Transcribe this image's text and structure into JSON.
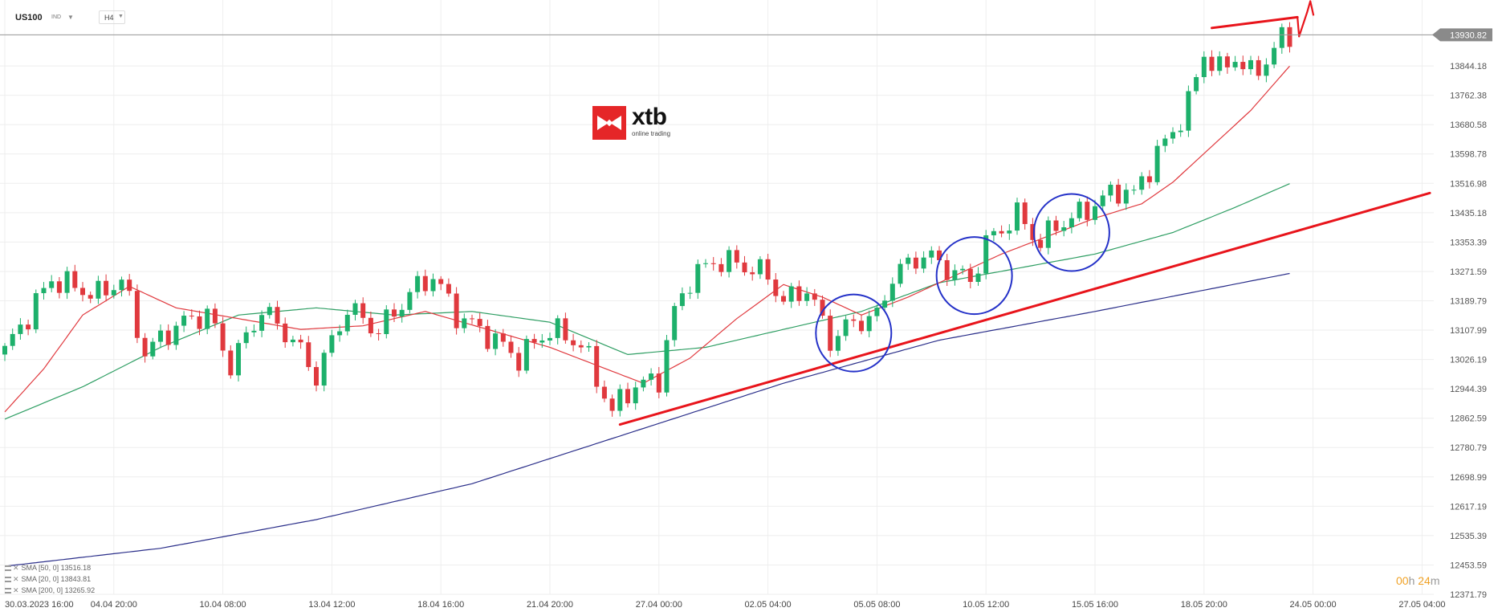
{
  "header": {
    "symbol": "US100",
    "symbol_type": "IND",
    "timeframe": "H4"
  },
  "logo": {
    "name": "xtb",
    "tagline": "online trading"
  },
  "countdown": {
    "hours": "00",
    "h_unit": "h",
    "minutes": "24",
    "m_unit": "m"
  },
  "indicators": [
    {
      "label": "SMA [50, 0] 13516.18",
      "color": "#2e9e63"
    },
    {
      "label": "SMA [20, 0] 13843.81",
      "color": "#e0393e"
    },
    {
      "label": "SMA [200, 0] 13265.92",
      "color": "#2b2f8a"
    }
  ],
  "colors": {
    "up": "#1db06b",
    "down": "#e0393e",
    "sma50": "#2e9e63",
    "sma20": "#e0393e",
    "sma200": "#2b2f8a",
    "drawing": "#e8141b",
    "circles": "#2431c8",
    "grid": "#eeeeee"
  },
  "chart_data": {
    "type": "candlestick",
    "instrument": "US100",
    "timeframe": "H4",
    "ylim": [
      12371.79,
      14010
    ],
    "y_ticks": [
      "13930.82",
      "13844.18",
      "13762.38",
      "13680.58",
      "13598.78",
      "13516.98",
      "13435.18",
      "13353.39",
      "13271.59",
      "13189.79",
      "13107.99",
      "13026.19",
      "12944.39",
      "12862.59",
      "12780.79",
      "12698.99",
      "12617.19",
      "12535.39",
      "12453.59",
      "12371.79"
    ],
    "current_price": "13930.82",
    "x_labels": [
      "30.03.2023 16:00",
      "04.04 20:00",
      "10.04 08:00",
      "13.04 12:00",
      "18.04 16:00",
      "21.04 20:00",
      "27.04 00:00",
      "02.05 04:00",
      "05.05 08:00",
      "10.05 12:00",
      "15.05 16:00",
      "18.05 20:00",
      "24.05 00:00",
      "27.05 04:00"
    ],
    "x_label_bars": [
      0,
      14,
      28,
      42,
      56,
      70,
      84,
      98,
      112,
      126,
      140,
      154,
      168,
      182
    ],
    "bars_visible": 183,
    "close_anchors": [
      [
        0,
        13050
      ],
      [
        6,
        13250
      ],
      [
        12,
        13205
      ],
      [
        15,
        13250
      ],
      [
        18,
        13045
      ],
      [
        22,
        13120
      ],
      [
        26,
        13155
      ],
      [
        29,
        13010
      ],
      [
        33,
        13165
      ],
      [
        37,
        13080
      ],
      [
        40,
        12980
      ],
      [
        44,
        13170
      ],
      [
        48,
        13105
      ],
      [
        52,
        13210
      ],
      [
        55,
        13260
      ],
      [
        58,
        13150
      ],
      [
        62,
        13095
      ],
      [
        66,
        13030
      ],
      [
        70,
        13110
      ],
      [
        74,
        13070
      ],
      [
        78,
        12880
      ],
      [
        80,
        12940
      ],
      [
        84,
        12975
      ],
      [
        86,
        13160
      ],
      [
        88,
        13250
      ],
      [
        91,
        13300
      ],
      [
        94,
        13295
      ],
      [
        98,
        13260
      ],
      [
        100,
        13185
      ],
      [
        103,
        13225
      ],
      [
        106,
        13080
      ],
      [
        109,
        13130
      ],
      [
        112,
        13145
      ],
      [
        114,
        13260
      ],
      [
        118,
        13320
      ],
      [
        121,
        13280
      ],
      [
        124,
        13245
      ],
      [
        126,
        13350
      ],
      [
        130,
        13430
      ],
      [
        133,
        13350
      ],
      [
        135,
        13400
      ],
      [
        138,
        13430
      ],
      [
        140,
        13460
      ],
      [
        143,
        13500
      ],
      [
        145,
        13485
      ],
      [
        148,
        13600
      ],
      [
        150,
        13660
      ],
      [
        152,
        13740
      ],
      [
        154,
        13880
      ],
      [
        156,
        13830
      ],
      [
        158,
        13870
      ],
      [
        160,
        13820
      ],
      [
        162,
        13860
      ],
      [
        164,
        13920
      ],
      [
        165,
        13931
      ]
    ],
    "series": [
      {
        "name": "SMA [50, 0]",
        "values": [
          [
            0,
            12860
          ],
          [
            10,
            12950
          ],
          [
            20,
            13060
          ],
          [
            30,
            13150
          ],
          [
            40,
            13170
          ],
          [
            50,
            13150
          ],
          [
            60,
            13160
          ],
          [
            70,
            13130
          ],
          [
            80,
            13040
          ],
          [
            90,
            13060
          ],
          [
            100,
            13110
          ],
          [
            110,
            13160
          ],
          [
            120,
            13240
          ],
          [
            130,
            13280
          ],
          [
            140,
            13320
          ],
          [
            150,
            13380
          ],
          [
            158,
            13450
          ],
          [
            165,
            13516.18
          ]
        ]
      },
      {
        "name": "SMA [20, 0]",
        "values": [
          [
            0,
            12880
          ],
          [
            5,
            13000
          ],
          [
            10,
            13150
          ],
          [
            16,
            13230
          ],
          [
            22,
            13170
          ],
          [
            30,
            13140
          ],
          [
            38,
            13110
          ],
          [
            46,
            13120
          ],
          [
            54,
            13160
          ],
          [
            62,
            13110
          ],
          [
            70,
            13060
          ],
          [
            76,
            13010
          ],
          [
            82,
            12960
          ],
          [
            88,
            13030
          ],
          [
            94,
            13140
          ],
          [
            100,
            13235
          ],
          [
            105,
            13200
          ],
          [
            110,
            13150
          ],
          [
            116,
            13200
          ],
          [
            122,
            13260
          ],
          [
            128,
            13320
          ],
          [
            134,
            13370
          ],
          [
            140,
            13420
          ],
          [
            146,
            13460
          ],
          [
            150,
            13520
          ],
          [
            155,
            13620
          ],
          [
            160,
            13720
          ],
          [
            165,
            13843.81
          ]
        ]
      },
      {
        "name": "SMA [200, 0]",
        "values": [
          [
            0,
            12450
          ],
          [
            20,
            12500
          ],
          [
            40,
            12580
          ],
          [
            60,
            12680
          ],
          [
            80,
            12820
          ],
          [
            100,
            12960
          ],
          [
            120,
            13080
          ],
          [
            140,
            13160
          ],
          [
            165,
            13265.92
          ]
        ]
      }
    ],
    "annotations": [
      {
        "type": "trendline",
        "from": [
          79,
          12845
        ],
        "to": [
          183,
          13490
        ]
      },
      {
        "type": "trendline",
        "from": [
          155,
          13950
        ],
        "to": [
          166,
          13980
        ]
      },
      {
        "type": "circle",
        "center": [
          109,
          13100
        ]
      },
      {
        "type": "circle",
        "center": [
          124.5,
          13260
        ]
      },
      {
        "type": "circle",
        "center": [
          137,
          13380
        ]
      }
    ],
    "grid": true
  }
}
